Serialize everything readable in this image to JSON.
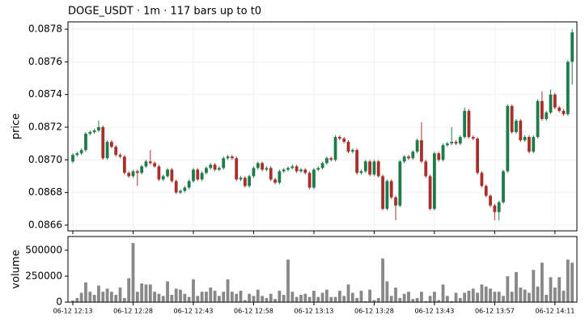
{
  "chart_data": [
    {
      "type": "candlestick",
      "title": "DOGE_USDT  ·  1m  ·  117 bars up to t0",
      "ylabel": "price",
      "ylim": [
        0.086565,
        0.087845
      ],
      "yticks": [
        0.0866,
        0.0868,
        {
          "value": 0.087,
          "label": "0.0870"
        },
        0.0872,
        0.0874,
        0.0876,
        0.0878
      ],
      "grid": true,
      "up_color": "#1e7b4a",
      "down_color": "#a8302a",
      "open": [
        0.08699,
        0.08703,
        0.08704,
        0.08706,
        0.08716,
        0.08717,
        0.08718,
        0.0872,
        0.08701,
        0.08711,
        0.08708,
        0.08703,
        0.08702,
        0.08692,
        0.0869,
        0.08693,
        0.08692,
        0.08696,
        0.08699,
        0.08698,
        0.08696,
        0.08688,
        0.0869,
        0.08694,
        0.08687,
        0.0868,
        0.08681,
        0.08683,
        0.08687,
        0.08694,
        0.08688,
        0.08692,
        0.08695,
        0.08697,
        0.08694,
        0.08695,
        0.08701,
        0.08702,
        0.08701,
        0.08688,
        0.08689,
        0.08684,
        0.0869,
        0.08695,
        0.08698,
        0.08694,
        0.08695,
        0.08688,
        0.08686,
        0.08693,
        0.08694,
        0.08695,
        0.08696,
        0.08693,
        0.08694,
        0.08692,
        0.08683,
        0.08694,
        0.08695,
        0.08698,
        0.08701,
        0.087,
        0.08714,
        0.08713,
        0.08711,
        0.08705,
        0.08706,
        0.08692,
        0.08693,
        0.08699,
        0.08691,
        0.08699,
        0.0869,
        0.0867,
        0.08687,
        0.08677,
        0.08672,
        0.08699,
        0.08702,
        0.08701,
        0.08705,
        0.08712,
        0.08699,
        0.0869,
        0.0867,
        0.08704,
        0.087,
        0.08709,
        0.0871,
        0.08711,
        0.0871,
        0.08714,
        0.0873,
        0.08714,
        0.08713,
        0.08692,
        0.08684,
        0.08678,
        0.08672,
        0.08668,
        0.08674,
        0.08693,
        0.08733,
        0.08717,
        0.08724,
        0.08712,
        0.08714,
        0.08705,
        0.08714,
        0.08736,
        0.08725,
        0.08729,
        0.0874,
        0.08732,
        0.0873,
        0.08728,
        0.0876
      ],
      "high": [
        0.08704,
        0.08705,
        0.08707,
        0.08717,
        0.08718,
        0.08719,
        0.08724,
        0.08721,
        0.08712,
        0.08712,
        0.08709,
        0.08704,
        0.08703,
        0.08693,
        0.08694,
        0.08694,
        0.08697,
        0.087,
        0.08706,
        0.08699,
        0.08697,
        0.08691,
        0.08695,
        0.08695,
        0.08688,
        0.08682,
        0.08684,
        0.08688,
        0.08695,
        0.08695,
        0.08693,
        0.08696,
        0.08698,
        0.08698,
        0.08696,
        0.08702,
        0.08703,
        0.08703,
        0.08702,
        0.0869,
        0.0869,
        0.08691,
        0.08696,
        0.08699,
        0.08699,
        0.08696,
        0.08696,
        0.08689,
        0.08694,
        0.08695,
        0.08696,
        0.08697,
        0.08697,
        0.08695,
        0.08695,
        0.08693,
        0.08695,
        0.08696,
        0.08699,
        0.08702,
        0.08702,
        0.08715,
        0.08715,
        0.08714,
        0.08712,
        0.08707,
        0.08707,
        0.08694,
        0.087,
        0.087,
        0.087,
        0.087,
        0.08691,
        0.08688,
        0.08688,
        0.08678,
        0.087,
        0.08703,
        0.08703,
        0.08706,
        0.08713,
        0.08723,
        0.087,
        0.08691,
        0.08705,
        0.08705,
        0.0871,
        0.08711,
        0.0872,
        0.08712,
        0.08715,
        0.08732,
        0.08731,
        0.08715,
        0.08714,
        0.08693,
        0.08685,
        0.08679,
        0.08673,
        0.08675,
        0.08694,
        0.08734,
        0.08734,
        0.08725,
        0.08725,
        0.08715,
        0.08715,
        0.08715,
        0.08737,
        0.08742,
        0.0873,
        0.08743,
        0.08741,
        0.08733,
        0.08731,
        0.08761,
        0.0878
      ],
      "low": [
        0.08698,
        0.08702,
        0.08703,
        0.08705,
        0.08715,
        0.08716,
        0.08717,
        0.087,
        0.087,
        0.08707,
        0.08702,
        0.08701,
        0.08691,
        0.08689,
        0.08689,
        0.08684,
        0.08691,
        0.08695,
        0.08697,
        0.08695,
        0.08687,
        0.08687,
        0.08689,
        0.08686,
        0.08679,
        0.08679,
        0.0868,
        0.08682,
        0.08686,
        0.08687,
        0.08687,
        0.08691,
        0.08694,
        0.08693,
        0.08693,
        0.08694,
        0.087,
        0.087,
        0.08687,
        0.08687,
        0.08683,
        0.08683,
        0.08689,
        0.08694,
        0.08693,
        0.08693,
        0.08687,
        0.08685,
        0.08685,
        0.08692,
        0.08693,
        0.08694,
        0.08692,
        0.08692,
        0.08691,
        0.08682,
        0.08682,
        0.08693,
        0.08694,
        0.08697,
        0.08699,
        0.08699,
        0.08712,
        0.0871,
        0.08704,
        0.08704,
        0.08691,
        0.08691,
        0.08692,
        0.0869,
        0.0869,
        0.08689,
        0.08669,
        0.08669,
        0.08676,
        0.08663,
        0.08671,
        0.08698,
        0.087,
        0.087,
        0.08704,
        0.08698,
        0.08689,
        0.08669,
        0.08669,
        0.08699,
        0.08699,
        0.08708,
        0.08709,
        0.08709,
        0.08709,
        0.08713,
        0.08713,
        0.08712,
        0.08691,
        0.08683,
        0.08677,
        0.08671,
        0.08663,
        0.08663,
        0.08673,
        0.08692,
        0.08716,
        0.08716,
        0.08711,
        0.08711,
        0.08704,
        0.08704,
        0.08713,
        0.08724,
        0.08724,
        0.08728,
        0.08731,
        0.08729,
        0.08727,
        0.08727,
        0.08746
      ],
      "close": [
        0.08703,
        0.08704,
        0.08706,
        0.08716,
        0.08717,
        0.08718,
        0.0872,
        0.08701,
        0.08711,
        0.08708,
        0.08703,
        0.08702,
        0.08692,
        0.0869,
        0.08693,
        0.08692,
        0.08696,
        0.08699,
        0.08698,
        0.08696,
        0.08688,
        0.0869,
        0.08694,
        0.08687,
        0.0868,
        0.08681,
        0.08683,
        0.08687,
        0.08694,
        0.08688,
        0.08692,
        0.08695,
        0.08697,
        0.08694,
        0.08695,
        0.08701,
        0.08702,
        0.08701,
        0.08688,
        0.08689,
        0.08684,
        0.0869,
        0.08695,
        0.08698,
        0.08694,
        0.08695,
        0.08688,
        0.08686,
        0.08693,
        0.08694,
        0.08695,
        0.08696,
        0.08693,
        0.08694,
        0.08692,
        0.08683,
        0.08694,
        0.08695,
        0.08698,
        0.08701,
        0.087,
        0.08714,
        0.08713,
        0.08711,
        0.08705,
        0.08706,
        0.08692,
        0.08693,
        0.08699,
        0.08691,
        0.08699,
        0.0869,
        0.0867,
        0.08687,
        0.08677,
        0.08672,
        0.08699,
        0.08702,
        0.08701,
        0.08705,
        0.08712,
        0.08699,
        0.0869,
        0.0867,
        0.08704,
        0.087,
        0.08709,
        0.0871,
        0.08711,
        0.0871,
        0.08714,
        0.0873,
        0.08714,
        0.08713,
        0.08692,
        0.08684,
        0.08678,
        0.08672,
        0.08668,
        0.08674,
        0.08693,
        0.08733,
        0.08717,
        0.08724,
        0.08712,
        0.08714,
        0.08705,
        0.08714,
        0.08736,
        0.08725,
        0.08729,
        0.0874,
        0.08732,
        0.0873,
        0.08728,
        0.0876,
        0.08778
      ]
    },
    {
      "type": "bar",
      "ylabel": "volume",
      "color": "#888888",
      "ylim": [
        0,
        632000
      ],
      "yticks": [
        0,
        250000,
        500000
      ],
      "xlim": [
        -1.13,
        117.1
      ],
      "xticks": [
        {
          "value": 0,
          "label": "06-12 12:13"
        },
        {
          "value": 14,
          "label": "06-12 12:28"
        },
        {
          "value": 28,
          "label": "06-12 12:43"
        },
        {
          "value": 42,
          "label": "06-12 12:58"
        },
        {
          "value": 56,
          "label": "06-12 13:13"
        },
        {
          "value": 70,
          "label": "06-12 13:28"
        },
        {
          "value": 84,
          "label": "06-12 13:43"
        },
        {
          "value": 98,
          "label": "06-12 13:57"
        },
        {
          "value": 112,
          "label": "06-12 14:11"
        }
      ],
      "values": [
        15000,
        40000,
        90000,
        190000,
        100000,
        70000,
        160000,
        100000,
        130000,
        100000,
        70000,
        140000,
        40000,
        230000,
        570000,
        100000,
        180000,
        170000,
        170000,
        100000,
        80000,
        60000,
        200000,
        70000,
        130000,
        120000,
        80000,
        50000,
        220000,
        60000,
        100000,
        100000,
        140000,
        110000,
        60000,
        100000,
        220000,
        100000,
        80000,
        110000,
        20000,
        80000,
        60000,
        120000,
        60000,
        40000,
        80000,
        30000,
        110000,
        70000,
        410000,
        100000,
        50000,
        70000,
        80000,
        50000,
        110000,
        50000,
        90000,
        120000,
        50000,
        50000,
        110000,
        60000,
        170000,
        90000,
        40000,
        110000,
        10000,
        120000,
        20000,
        40000,
        420000,
        200000,
        60000,
        140000,
        40000,
        80000,
        100000,
        30000,
        40000,
        100000,
        10000,
        60000,
        100000,
        20000,
        170000,
        60000,
        10000,
        90000,
        40000,
        90000,
        110000,
        130000,
        90000,
        170000,
        150000,
        130000,
        100000,
        100000,
        60000,
        250000,
        100000,
        290000,
        140000,
        120000,
        90000,
        310000,
        150000,
        380000,
        70000,
        240000,
        140000,
        240000,
        110000,
        410000,
        380000
      ]
    }
  ]
}
